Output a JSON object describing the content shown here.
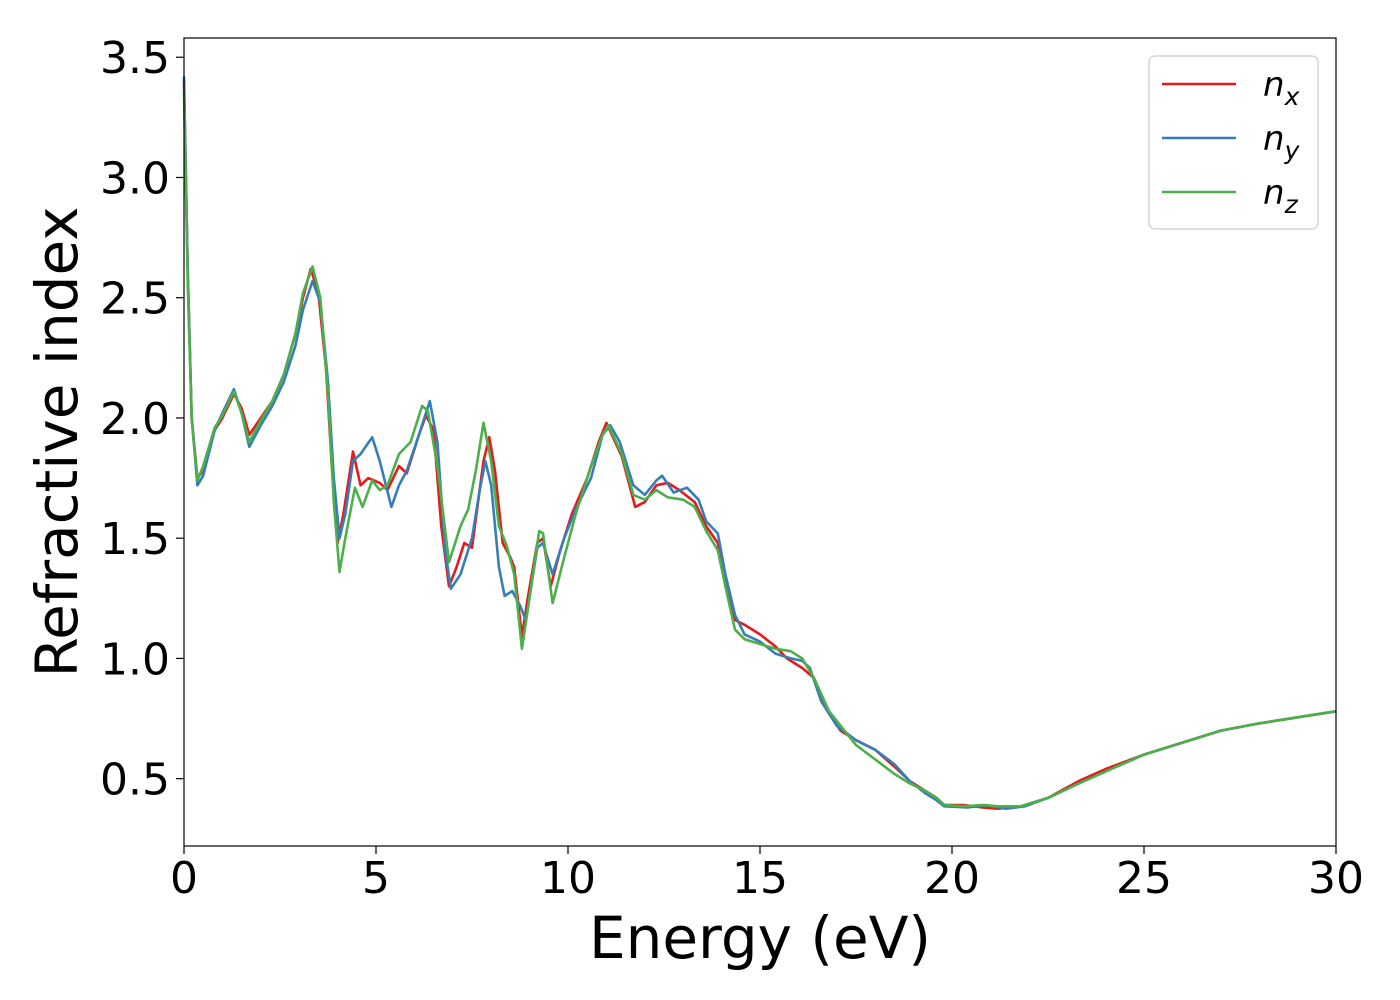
{
  "chart_data": {
    "type": "line",
    "title": "",
    "xlabel": "Energy (eV)",
    "ylabel": "Refractive index",
    "xlim": [
      0,
      30
    ],
    "ylim": [
      0.22,
      3.58
    ],
    "xticks": [
      0,
      5,
      10,
      15,
      20,
      25,
      30
    ],
    "xtick_labels": [
      "0",
      "5",
      "10",
      "15",
      "20",
      "25",
      "30"
    ],
    "yticks": [
      0.5,
      1.0,
      1.5,
      2.0,
      2.5,
      3.0,
      3.5
    ],
    "ytick_labels": [
      "0.5",
      "1.0",
      "1.5",
      "2.0",
      "2.5",
      "3.0",
      "3.5"
    ],
    "grid": false,
    "legend_position": "top-right",
    "series": [
      {
        "name": "n_x",
        "label_base": "n",
        "label_sub": "x",
        "color": "#e41a1c",
        "points": [
          [
            0,
            3.4
          ],
          [
            0.1,
            2.6
          ],
          [
            0.2,
            2.0
          ],
          [
            0.35,
            1.75
          ],
          [
            0.5,
            1.78
          ],
          [
            0.8,
            1.95
          ],
          [
            1.0,
            2.0
          ],
          [
            1.3,
            2.1
          ],
          [
            1.5,
            2.04
          ],
          [
            1.7,
            1.93
          ],
          [
            2.0,
            2.0
          ],
          [
            2.3,
            2.07
          ],
          [
            2.6,
            2.18
          ],
          [
            2.9,
            2.35
          ],
          [
            3.1,
            2.5
          ],
          [
            3.3,
            2.62
          ],
          [
            3.5,
            2.52
          ],
          [
            3.7,
            2.2
          ],
          [
            3.85,
            1.8
          ],
          [
            4.0,
            1.48
          ],
          [
            4.15,
            1.6
          ],
          [
            4.4,
            1.86
          ],
          [
            4.6,
            1.72
          ],
          [
            4.8,
            1.75
          ],
          [
            5.1,
            1.73
          ],
          [
            5.3,
            1.7
          ],
          [
            5.6,
            1.8
          ],
          [
            5.8,
            1.77
          ],
          [
            6.1,
            1.92
          ],
          [
            6.3,
            2.01
          ],
          [
            6.5,
            1.95
          ],
          [
            6.7,
            1.55
          ],
          [
            6.9,
            1.3
          ],
          [
            7.1,
            1.38
          ],
          [
            7.3,
            1.48
          ],
          [
            7.5,
            1.46
          ],
          [
            7.8,
            1.82
          ],
          [
            7.95,
            1.92
          ],
          [
            8.1,
            1.78
          ],
          [
            8.3,
            1.48
          ],
          [
            8.5,
            1.42
          ],
          [
            8.6,
            1.38
          ],
          [
            8.8,
            1.09
          ],
          [
            8.95,
            1.25
          ],
          [
            9.2,
            1.48
          ],
          [
            9.35,
            1.5
          ],
          [
            9.55,
            1.3
          ],
          [
            9.8,
            1.45
          ],
          [
            10.1,
            1.6
          ],
          [
            10.5,
            1.75
          ],
          [
            10.8,
            1.9
          ],
          [
            11.0,
            1.98
          ],
          [
            11.4,
            1.84
          ],
          [
            11.75,
            1.63
          ],
          [
            12.0,
            1.65
          ],
          [
            12.3,
            1.72
          ],
          [
            12.6,
            1.73
          ],
          [
            12.9,
            1.7
          ],
          [
            13.3,
            1.65
          ],
          [
            13.6,
            1.55
          ],
          [
            13.9,
            1.48
          ],
          [
            14.1,
            1.32
          ],
          [
            14.35,
            1.16
          ],
          [
            14.6,
            1.14
          ],
          [
            15.0,
            1.1
          ],
          [
            15.4,
            1.05
          ],
          [
            15.7,
            1.0
          ],
          [
            16.1,
            0.96
          ],
          [
            16.4,
            0.92
          ],
          [
            16.8,
            0.77
          ],
          [
            17.1,
            0.7
          ],
          [
            17.5,
            0.66
          ],
          [
            18.0,
            0.62
          ],
          [
            18.5,
            0.55
          ],
          [
            18.9,
            0.49
          ],
          [
            19.3,
            0.45
          ],
          [
            19.6,
            0.42
          ],
          [
            19.8,
            0.39
          ],
          [
            20.3,
            0.39
          ],
          [
            20.8,
            0.38
          ],
          [
            21.2,
            0.375
          ],
          [
            21.8,
            0.385
          ],
          [
            22.5,
            0.42
          ],
          [
            23.3,
            0.49
          ],
          [
            24.0,
            0.54
          ],
          [
            25.0,
            0.6
          ],
          [
            26.0,
            0.65
          ],
          [
            27.0,
            0.7
          ],
          [
            28.0,
            0.73
          ],
          [
            29.0,
            0.755
          ],
          [
            30.0,
            0.78
          ]
        ]
      },
      {
        "name": "n_y",
        "label_base": "n",
        "label_sub": "y",
        "color": "#377eb8",
        "points": [
          [
            0,
            3.42
          ],
          [
            0.1,
            2.6
          ],
          [
            0.2,
            2.0
          ],
          [
            0.35,
            1.72
          ],
          [
            0.5,
            1.76
          ],
          [
            0.8,
            1.95
          ],
          [
            1.0,
            2.02
          ],
          [
            1.3,
            2.12
          ],
          [
            1.5,
            2.02
          ],
          [
            1.7,
            1.88
          ],
          [
            2.0,
            1.97
          ],
          [
            2.3,
            2.05
          ],
          [
            2.6,
            2.15
          ],
          [
            2.9,
            2.3
          ],
          [
            3.1,
            2.45
          ],
          [
            3.35,
            2.57
          ],
          [
            3.55,
            2.48
          ],
          [
            3.75,
            2.15
          ],
          [
            3.9,
            1.75
          ],
          [
            4.05,
            1.5
          ],
          [
            4.2,
            1.6
          ],
          [
            4.4,
            1.82
          ],
          [
            4.6,
            1.85
          ],
          [
            4.9,
            1.92
          ],
          [
            5.1,
            1.82
          ],
          [
            5.4,
            1.63
          ],
          [
            5.6,
            1.72
          ],
          [
            5.8,
            1.78
          ],
          [
            6.1,
            1.92
          ],
          [
            6.4,
            2.07
          ],
          [
            6.6,
            1.9
          ],
          [
            6.8,
            1.45
          ],
          [
            6.95,
            1.29
          ],
          [
            7.2,
            1.35
          ],
          [
            7.5,
            1.5
          ],
          [
            7.7,
            1.7
          ],
          [
            7.85,
            1.82
          ],
          [
            8.0,
            1.72
          ],
          [
            8.2,
            1.38
          ],
          [
            8.35,
            1.26
          ],
          [
            8.55,
            1.28
          ],
          [
            8.75,
            1.22
          ],
          [
            8.9,
            1.16
          ],
          [
            9.2,
            1.46
          ],
          [
            9.35,
            1.48
          ],
          [
            9.6,
            1.35
          ],
          [
            9.9,
            1.5
          ],
          [
            10.2,
            1.62
          ],
          [
            10.6,
            1.75
          ],
          [
            10.9,
            1.93
          ],
          [
            11.1,
            1.97
          ],
          [
            11.35,
            1.9
          ],
          [
            11.7,
            1.72
          ],
          [
            12.0,
            1.68
          ],
          [
            12.3,
            1.74
          ],
          [
            12.45,
            1.76
          ],
          [
            12.75,
            1.69
          ],
          [
            13.1,
            1.71
          ],
          [
            13.4,
            1.66
          ],
          [
            13.6,
            1.57
          ],
          [
            13.9,
            1.52
          ],
          [
            14.1,
            1.35
          ],
          [
            14.35,
            1.18
          ],
          [
            14.6,
            1.1
          ],
          [
            15.0,
            1.07
          ],
          [
            15.4,
            1.02
          ],
          [
            15.8,
            1.0
          ],
          [
            16.1,
            0.99
          ],
          [
            16.3,
            0.96
          ],
          [
            16.6,
            0.82
          ],
          [
            17.0,
            0.72
          ],
          [
            17.5,
            0.66
          ],
          [
            18.0,
            0.62
          ],
          [
            18.5,
            0.56
          ],
          [
            18.9,
            0.49
          ],
          [
            19.3,
            0.44
          ],
          [
            19.6,
            0.41
          ],
          [
            19.8,
            0.385
          ],
          [
            20.4,
            0.38
          ],
          [
            20.9,
            0.39
          ],
          [
            21.4,
            0.375
          ],
          [
            21.9,
            0.385
          ],
          [
            22.5,
            0.42
          ],
          [
            23.3,
            0.48
          ],
          [
            24.0,
            0.53
          ],
          [
            25.0,
            0.6
          ],
          [
            26.0,
            0.65
          ],
          [
            27.0,
            0.7
          ],
          [
            28.0,
            0.73
          ],
          [
            29.0,
            0.755
          ],
          [
            30.0,
            0.78
          ]
        ]
      },
      {
        "name": "n_z",
        "label_base": "n",
        "label_sub": "z",
        "color": "#4daf4a",
        "points": [
          [
            0,
            3.35
          ],
          [
            0.1,
            2.55
          ],
          [
            0.2,
            2.0
          ],
          [
            0.35,
            1.74
          ],
          [
            0.5,
            1.8
          ],
          [
            0.8,
            1.96
          ],
          [
            1.0,
            2.01
          ],
          [
            1.3,
            2.11
          ],
          [
            1.5,
            2.02
          ],
          [
            1.7,
            1.9
          ],
          [
            2.0,
            1.99
          ],
          [
            2.3,
            2.07
          ],
          [
            2.6,
            2.18
          ],
          [
            2.9,
            2.35
          ],
          [
            3.1,
            2.52
          ],
          [
            3.35,
            2.63
          ],
          [
            3.55,
            2.5
          ],
          [
            3.75,
            2.1
          ],
          [
            3.9,
            1.65
          ],
          [
            4.05,
            1.36
          ],
          [
            4.2,
            1.5
          ],
          [
            4.45,
            1.71
          ],
          [
            4.65,
            1.63
          ],
          [
            4.9,
            1.74
          ],
          [
            5.1,
            1.7
          ],
          [
            5.3,
            1.72
          ],
          [
            5.6,
            1.85
          ],
          [
            5.9,
            1.9
          ],
          [
            6.2,
            2.05
          ],
          [
            6.35,
            2.03
          ],
          [
            6.6,
            1.8
          ],
          [
            6.9,
            1.4
          ],
          [
            7.2,
            1.55
          ],
          [
            7.4,
            1.62
          ],
          [
            7.6,
            1.78
          ],
          [
            7.8,
            1.98
          ],
          [
            8.0,
            1.82
          ],
          [
            8.2,
            1.55
          ],
          [
            8.4,
            1.47
          ],
          [
            8.6,
            1.35
          ],
          [
            8.8,
            1.04
          ],
          [
            8.95,
            1.2
          ],
          [
            9.25,
            1.53
          ],
          [
            9.35,
            1.52
          ],
          [
            9.6,
            1.23
          ],
          [
            9.9,
            1.42
          ],
          [
            10.2,
            1.6
          ],
          [
            10.6,
            1.8
          ],
          [
            10.9,
            1.93
          ],
          [
            11.05,
            1.97
          ],
          [
            11.4,
            1.85
          ],
          [
            11.7,
            1.68
          ],
          [
            12.0,
            1.66
          ],
          [
            12.3,
            1.7
          ],
          [
            12.6,
            1.67
          ],
          [
            13.0,
            1.66
          ],
          [
            13.3,
            1.63
          ],
          [
            13.6,
            1.53
          ],
          [
            13.9,
            1.45
          ],
          [
            14.1,
            1.3
          ],
          [
            14.35,
            1.12
          ],
          [
            14.6,
            1.08
          ],
          [
            15.0,
            1.06
          ],
          [
            15.4,
            1.04
          ],
          [
            15.8,
            1.03
          ],
          [
            16.1,
            1.0
          ],
          [
            16.4,
            0.92
          ],
          [
            16.8,
            0.78
          ],
          [
            17.1,
            0.72
          ],
          [
            17.5,
            0.64
          ],
          [
            18.0,
            0.58
          ],
          [
            18.5,
            0.52
          ],
          [
            18.9,
            0.48
          ],
          [
            19.3,
            0.45
          ],
          [
            19.6,
            0.42
          ],
          [
            19.8,
            0.39
          ],
          [
            20.3,
            0.385
          ],
          [
            20.8,
            0.39
          ],
          [
            21.2,
            0.385
          ],
          [
            21.8,
            0.385
          ],
          [
            22.5,
            0.42
          ],
          [
            23.3,
            0.48
          ],
          [
            24.0,
            0.53
          ],
          [
            25.0,
            0.6
          ],
          [
            26.0,
            0.65
          ],
          [
            27.0,
            0.7
          ],
          [
            28.0,
            0.73
          ],
          [
            29.0,
            0.755
          ],
          [
            30.0,
            0.78
          ]
        ]
      }
    ]
  }
}
